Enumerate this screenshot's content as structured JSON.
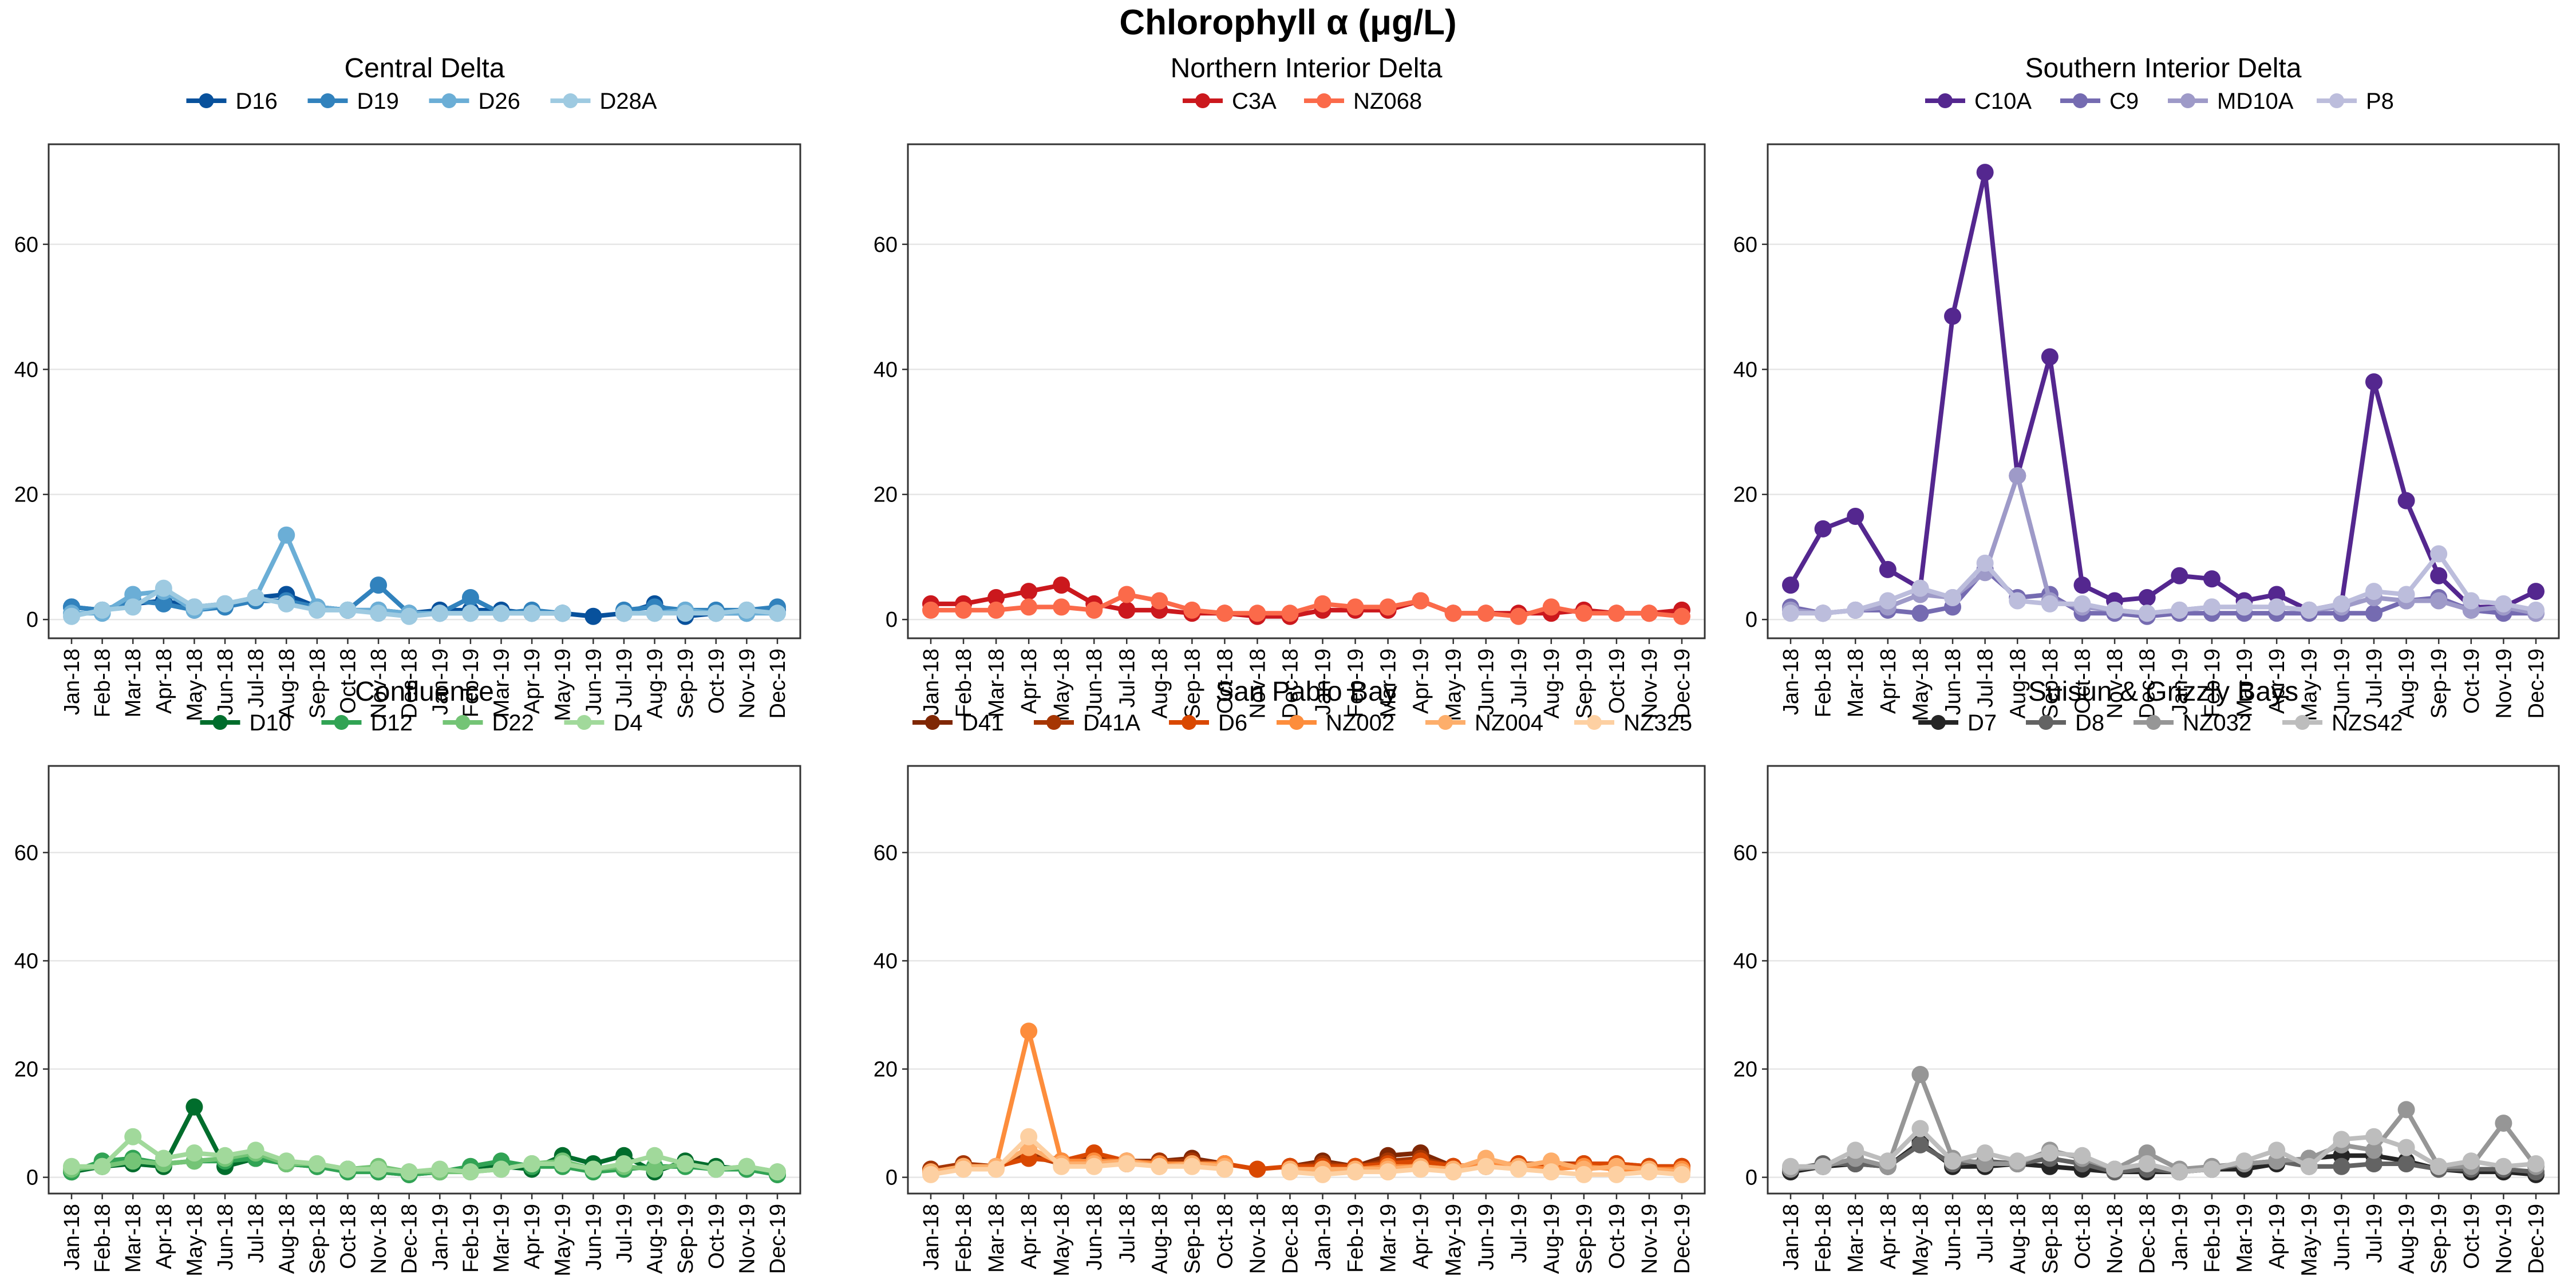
{
  "title": "Chlorophyll α (μg/L)",
  "x_categories": [
    "Jan-18",
    "Feb-18",
    "Mar-18",
    "Apr-18",
    "May-18",
    "Jun-18",
    "Jul-18",
    "Aug-18",
    "Sep-18",
    "Oct-18",
    "Nov-18",
    "Dec-18",
    "Jan-19",
    "Feb-19",
    "Mar-19",
    "Apr-19",
    "May-19",
    "Jun-19",
    "Jul-19",
    "Aug-19",
    "Sep-19",
    "Oct-19",
    "Nov-19",
    "Dec-19"
  ],
  "y_ticks": [
    0,
    20,
    40,
    60
  ],
  "chart_data": [
    {
      "type": "line",
      "title": "Central Delta",
      "ylim": [
        -3,
        76
      ],
      "series": [
        {
          "name": "D16",
          "color": "#08519C",
          "values": [
            2,
            1.5,
            2.5,
            3,
            2,
            2.5,
            3.5,
            4,
            2,
            1.5,
            1.5,
            1,
            1.5,
            1.5,
            1.5,
            1,
            1,
            0.5,
            1,
            2.5,
            0.5,
            1,
            1,
            1.5
          ]
        },
        {
          "name": "D19",
          "color": "#3182BD",
          "values": [
            2,
            1.5,
            3,
            2.5,
            1.5,
            2,
            3,
            3,
            2,
            1.5,
            5.5,
            1,
            1,
            3.5,
            1,
            1.5,
            1,
            null,
            1.5,
            2,
            1.5,
            1.5,
            1.5,
            2
          ]
        },
        {
          "name": "D26",
          "color": "#6BAED6",
          "values": [
            1,
            1,
            4,
            4.5,
            1.5,
            2.5,
            3.5,
            13.5,
            2,
            1.5,
            1.5,
            1,
            1,
            1,
            1,
            1,
            1,
            null,
            1,
            1,
            1.5,
            1,
            1,
            1
          ]
        },
        {
          "name": "D28A",
          "color": "#9ECAE1",
          "values": [
            0.5,
            1.5,
            2,
            5,
            2,
            2.5,
            3.5,
            2.5,
            1.5,
            1.5,
            1,
            0.5,
            1,
            1,
            1,
            1,
            1,
            null,
            1,
            1,
            1,
            1,
            1.5,
            1
          ]
        }
      ]
    },
    {
      "type": "line",
      "title": "Northern Interior Delta",
      "ylim": [
        -3,
        76
      ],
      "series": [
        {
          "name": "C3A",
          "color": "#CB181D",
          "values": [
            2.5,
            2.5,
            3.5,
            4.5,
            5.5,
            2.5,
            1.5,
            1.5,
            1,
            1,
            0.5,
            0.5,
            1.5,
            1.5,
            1.5,
            3,
            1,
            1,
            1,
            1,
            1.5,
            1,
            1,
            1.5
          ]
        },
        {
          "name": "NZ068",
          "color": "#FB6A4A",
          "values": [
            1.5,
            1.5,
            1.5,
            2,
            2,
            1.5,
            4,
            3,
            1.5,
            1,
            1,
            1,
            2.5,
            2,
            2,
            3,
            1,
            1,
            0.5,
            2,
            1,
            1,
            1,
            0.5
          ]
        }
      ]
    },
    {
      "type": "line",
      "title": "Southern Interior Delta",
      "ylim": [
        -3,
        76
      ],
      "series": [
        {
          "name": "C10A",
          "color": "#54278F",
          "values": [
            5.5,
            14.5,
            16.5,
            8,
            5,
            48.5,
            71.5,
            23,
            42,
            5.5,
            3,
            3.5,
            7,
            6.5,
            3,
            4,
            1.5,
            2.5,
            38,
            19,
            7,
            2,
            2,
            4.5
          ]
        },
        {
          "name": "C9",
          "color": "#756BB1",
          "values": [
            2,
            1,
            1.5,
            1.5,
            1,
            2,
            8,
            3.5,
            4,
            1,
            1,
            0.5,
            1,
            1,
            1,
            1,
            1,
            1,
            1,
            3,
            3.5,
            1.5,
            1,
            1
          ]
        },
        {
          "name": "MD10A",
          "color": "#9E9AC8",
          "values": [
            1.5,
            1,
            1.5,
            2,
            4,
            3.5,
            7.5,
            23,
            3,
            2,
            1.5,
            1,
            1.5,
            2,
            2,
            2,
            1.5,
            2,
            3.5,
            3,
            3,
            1.5,
            2,
            1
          ]
        },
        {
          "name": "P8",
          "color": "#BCBDDC",
          "values": [
            1,
            1,
            1.5,
            3,
            5,
            3.5,
            9,
            3,
            2.5,
            2.5,
            1.5,
            1,
            1.5,
            2,
            2,
            2,
            1.5,
            2.5,
            4.5,
            4,
            10.5,
            3,
            2.5,
            1.5
          ]
        }
      ]
    },
    {
      "type": "line",
      "title": "Confluence",
      "ylim": [
        -3,
        76
      ],
      "series": [
        {
          "name": "D10",
          "color": "#006D2C",
          "values": [
            1,
            2,
            2.5,
            2,
            13,
            2,
            3.5,
            2.5,
            2,
            1.5,
            1,
            0.5,
            1,
            1.5,
            2,
            1.5,
            4,
            2.5,
            4,
            1,
            3,
            2,
            1.5,
            0.5
          ]
        },
        {
          "name": "D12",
          "color": "#31A354",
          "values": [
            1,
            3,
            3.5,
            2.5,
            3,
            3,
            3.5,
            2.5,
            2,
            1,
            1,
            0.5,
            1,
            2,
            3,
            2,
            2,
            1,
            1.5,
            2,
            2,
            1.5,
            1.5,
            0.5
          ]
        },
        {
          "name": "D22",
          "color": "#74C476",
          "values": [
            1.5,
            2,
            3,
            2.5,
            3,
            3.5,
            4.5,
            2.5,
            2.5,
            1.5,
            2,
            1,
            1,
            1,
            1.5,
            2.5,
            3,
            1.5,
            2,
            1.5,
            2.5,
            1.5,
            2,
            1
          ]
        },
        {
          "name": "D4",
          "color": "#A1D99B",
          "values": [
            2,
            2,
            7.5,
            3.5,
            4.5,
            4,
            5,
            3,
            2.5,
            1.5,
            1.5,
            1,
            1.5,
            1,
            1.5,
            2.5,
            2.5,
            1.5,
            2.5,
            4,
            2.5,
            1.5,
            2,
            1
          ]
        }
      ]
    },
    {
      "type": "line",
      "title": "San Pablo Bay",
      "ylim": [
        -3,
        76
      ],
      "series": [
        {
          "name": "D41",
          "color": "#7F2704",
          "values": [
            1.5,
            2,
            2,
            5,
            3,
            4,
            3,
            3,
            3.5,
            2.5,
            null,
            2,
            3,
            2,
            4,
            4.5,
            2,
            2,
            2,
            2,
            2,
            2,
            2,
            1.5
          ]
        },
        {
          "name": "D41A",
          "color": "#A63603",
          "values": [
            1.5,
            2.5,
            2,
            4,
            2.5,
            3,
            2.5,
            3,
            3,
            2.5,
            null,
            2,
            2.5,
            2,
            3,
            3.5,
            2,
            2.5,
            2.5,
            2.5,
            2.5,
            2.5,
            2,
            2
          ]
        },
        {
          "name": "D6",
          "color": "#D94801",
          "values": [
            1,
            2,
            2,
            3.5,
            3,
            4.5,
            3,
            2.5,
            2.5,
            2.5,
            1.5,
            2,
            2,
            2,
            2.5,
            3,
            2,
            2.5,
            2.5,
            2,
            2.5,
            2.5,
            2,
            2
          ]
        },
        {
          "name": "NZ002",
          "color": "#FD8D3C",
          "values": [
            1,
            2,
            2,
            27,
            3,
            3,
            3,
            2.5,
            2.5,
            2.5,
            null,
            1.5,
            1.5,
            1.5,
            2,
            2,
            1.5,
            2.5,
            2,
            1.5,
            2,
            1.5,
            1.5,
            1.5
          ]
        },
        {
          "name": "NZ004",
          "color": "#FDAE6B",
          "values": [
            1,
            2,
            2,
            5.5,
            2.5,
            2.5,
            3,
            2,
            2.5,
            2,
            null,
            1.5,
            1.5,
            1.5,
            1.5,
            2,
            1.5,
            3.5,
            2,
            3,
            1.5,
            2,
            1.5,
            1
          ]
        },
        {
          "name": "NZ325",
          "color": "#FDD0A2",
          "values": [
            0.5,
            1.5,
            1.5,
            7.5,
            2,
            2,
            2.5,
            2,
            2,
            1.5,
            null,
            1,
            0.5,
            1,
            1,
            1.5,
            1,
            2,
            1.5,
            1,
            0.5,
            0.5,
            1,
            0.5
          ]
        }
      ]
    },
    {
      "type": "line",
      "title": "Suisun & Grizzly Bays",
      "ylim": [
        -3,
        76
      ],
      "series": [
        {
          "name": "D7",
          "color": "#252525",
          "values": [
            1,
            2,
            2.5,
            2,
            6.5,
            2,
            2,
            2.5,
            2,
            1.5,
            1,
            1,
            1,
            1.5,
            1.5,
            2.5,
            3.5,
            4,
            4,
            3,
            1.5,
            1,
            1,
            0.5
          ]
        },
        {
          "name": "D8",
          "color": "#636363",
          "values": [
            1.5,
            2.5,
            2.5,
            2,
            6,
            2.5,
            3,
            2.5,
            3.5,
            2.5,
            1,
            1.5,
            1,
            1.5,
            2.5,
            3,
            2,
            2,
            2.5,
            2.5,
            1.5,
            1.5,
            1.5,
            1
          ]
        },
        {
          "name": "NZ032",
          "color": "#969696",
          "values": [
            1.5,
            2,
            3.5,
            2,
            19,
            3.5,
            2.5,
            2.5,
            5,
            3.5,
            1.5,
            4.5,
            1.5,
            2,
            2.5,
            3,
            3.5,
            6,
            5,
            12.5,
            2,
            2,
            10,
            2
          ]
        },
        {
          "name": "NZS42",
          "color": "#BDBDBD",
          "values": [
            2,
            2,
            5,
            3,
            9,
            3,
            4.5,
            3,
            4.5,
            4,
            1.5,
            2.5,
            1,
            1.5,
            3,
            5,
            2,
            7,
            7.5,
            5.5,
            2,
            3,
            2,
            2.5
          ]
        }
      ]
    }
  ]
}
